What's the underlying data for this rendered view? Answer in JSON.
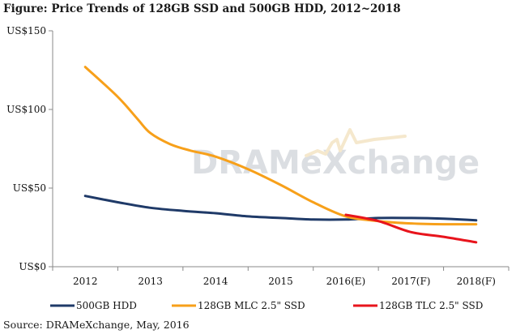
{
  "title": "Figure: Price Trends of 128GB SSD and 500GB HDD, 2012~2018",
  "source": "Source: DRAMeXchange, May, 2016",
  "watermark": "DRAMeXchange",
  "chart_data": {
    "type": "line",
    "categories": [
      "2012",
      "2013",
      "2014",
      "2015",
      "2016(E)",
      "2017(F)",
      "2018(F)"
    ],
    "y_ticks": [
      "US$0",
      "US$50",
      "US$100",
      "US$150"
    ],
    "y_tick_values": [
      0,
      50,
      100,
      150
    ],
    "ylim": [
      0,
      150
    ],
    "grid": false,
    "legend_position": "bottom",
    "series": [
      {
        "name": "500GB HDD",
        "color": "#1f3a68",
        "points": [
          [
            0,
            45
          ],
          [
            0.5,
            41
          ],
          [
            1,
            37.5
          ],
          [
            1.5,
            35.5
          ],
          [
            2,
            34
          ],
          [
            2.5,
            32
          ],
          [
            3,
            31
          ],
          [
            3.5,
            30
          ],
          [
            4,
            30
          ],
          [
            4.5,
            31
          ],
          [
            5,
            31
          ],
          [
            5.5,
            30.5
          ],
          [
            6,
            29.5
          ]
        ]
      },
      {
        "name": "128GB MLC 2.5\"  SSD",
        "color": "#f7a01a",
        "points": [
          [
            0,
            127
          ],
          [
            0.5,
            108
          ],
          [
            0.8,
            94
          ],
          [
            1,
            85
          ],
          [
            1.3,
            78
          ],
          [
            1.6,
            74
          ],
          [
            2,
            70
          ],
          [
            2.5,
            62
          ],
          [
            3,
            52
          ],
          [
            3.5,
            41
          ],
          [
            4,
            32
          ],
          [
            4.5,
            29
          ],
          [
            5,
            27.5
          ],
          [
            5.5,
            27
          ],
          [
            6,
            27
          ]
        ]
      },
      {
        "name": "128GB TLC 2.5\"  SSD",
        "color": "#e8141c",
        "points": [
          [
            4,
            33
          ],
          [
            4.5,
            29
          ],
          [
            5,
            22
          ],
          [
            5.5,
            19
          ],
          [
            6,
            15.5
          ]
        ]
      }
    ]
  }
}
